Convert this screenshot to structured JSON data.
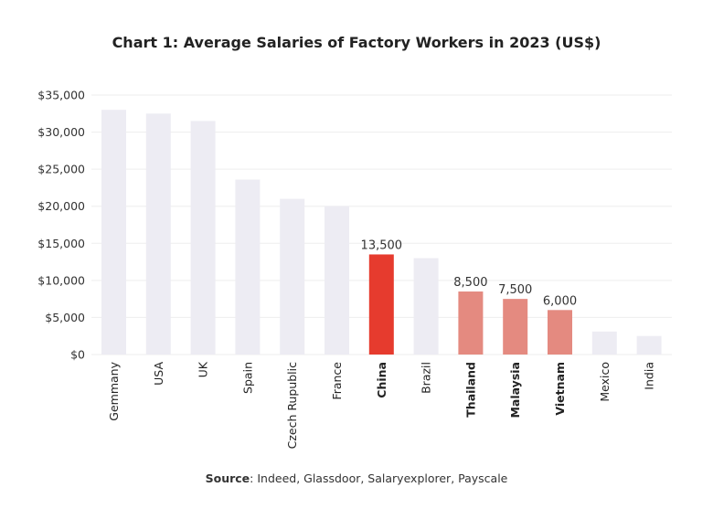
{
  "chart_data": {
    "type": "bar",
    "title": "Chart 1: Average Salaries of Factory Workers in 2023 (US$)",
    "xlabel": "",
    "ylabel": "",
    "ylim": [
      0,
      35000
    ],
    "yticks": [
      "$0",
      "$5,000",
      "$10,000",
      "$15,000",
      "$20,000",
      "$25,000",
      "$30,000",
      "$35,000"
    ],
    "ytick_values": [
      0,
      5000,
      10000,
      15000,
      20000,
      25000,
      30000,
      35000
    ],
    "grid": true,
    "categories": [
      "Gemmany",
      "USA",
      "UK",
      "Spain",
      "Czech Rupublic",
      "France",
      "China",
      "Brazil",
      "Thailand",
      "Malaysia",
      "Vietnam",
      "Mexico",
      "India"
    ],
    "values": [
      33000,
      32500,
      31500,
      23600,
      21000,
      20000,
      13500,
      13000,
      8500,
      7500,
      6000,
      3100,
      2500
    ],
    "data_labels": [
      "",
      "",
      "",
      "",
      "",
      "",
      "13,500",
      "",
      "8,500",
      "7,500",
      "6,000",
      "",
      ""
    ],
    "highlight": [
      "normal",
      "normal",
      "normal",
      "normal",
      "normal",
      "normal",
      "primary",
      "normal",
      "secondary",
      "secondary",
      "secondary",
      "normal",
      "normal"
    ],
    "colors": {
      "normal": "#edecf3",
      "primary": "#e63b2e",
      "secondary": "#e48a80",
      "grid": "#eeeeee"
    }
  },
  "source": {
    "label": "Source",
    "text": ": Indeed, Glassdoor, Salaryexplorer, Payscale"
  }
}
